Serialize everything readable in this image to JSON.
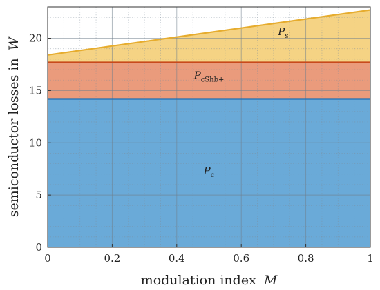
{
  "chart_data": {
    "type": "area",
    "title": "",
    "xlabel": "modulation index",
    "xlabel_symbol": "M",
    "ylabel": "semiconductor losses in",
    "ylabel_symbol": "W",
    "xlim": [
      0,
      1
    ],
    "ylim": [
      0,
      23
    ],
    "xticks": [
      "0",
      "0.2",
      "0.4",
      "0.6",
      "0.8",
      "1"
    ],
    "yticks": [
      "0",
      "5",
      "10",
      "15",
      "20"
    ],
    "grid": true,
    "stacked": true,
    "x": [
      0,
      1
    ],
    "series": [
      {
        "label": "P",
        "subscript": "c",
        "lower": [
          0,
          0
        ],
        "upper": [
          14.2,
          14.2
        ],
        "fill": "#6aaad8",
        "stroke": "#1f6fb6"
      },
      {
        "label": "P",
        "subscript": "cShb+",
        "lower": [
          14.2,
          14.2
        ],
        "upper": [
          17.7,
          17.7
        ],
        "fill": "#ea9b7c",
        "stroke": "#c84a1c"
      },
      {
        "label": "P",
        "subscript": "s",
        "lower": [
          17.7,
          17.7
        ],
        "upper": [
          18.4,
          22.7
        ],
        "fill": "#f5d384",
        "stroke": "#e6ac2e"
      }
    ]
  }
}
